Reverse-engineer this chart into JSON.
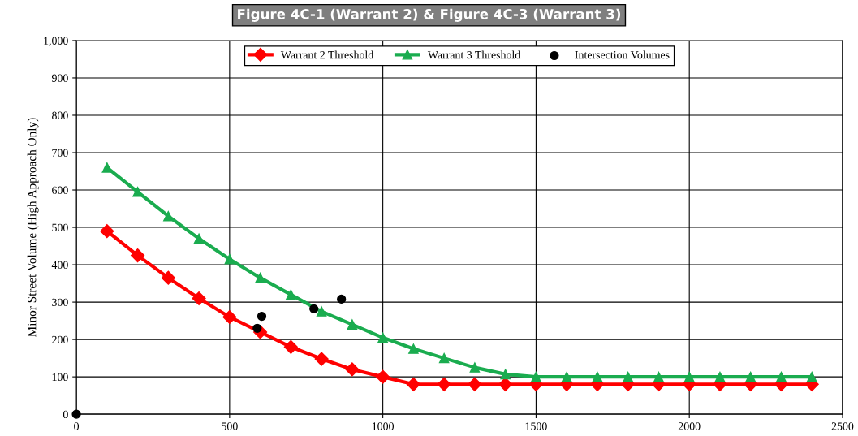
{
  "chart_data": {
    "type": "line",
    "title": "Figure 4C-1 (Warrant 2) & Figure 4C-3 (Warrant 3)",
    "ylabel": "Minor Street Volume (High Approach Only)",
    "xlim": [
      0,
      2500
    ],
    "xticks": [
      0,
      500,
      1000,
      1500,
      2000,
      2500
    ],
    "ylim": [
      0,
      1000
    ],
    "yticks": [
      0,
      100,
      200,
      300,
      400,
      500,
      600,
      700,
      800,
      900,
      {
        "value": 1000,
        "label": "1,000"
      }
    ],
    "grid": true,
    "legend": "top",
    "series": [
      {
        "name": "Warrant 2 Threshold",
        "color": "#ff0000",
        "marker": "diamond",
        "x": [
          100,
          200,
          300,
          400,
          500,
          600,
          700,
          800,
          900,
          1000,
          1100,
          1200,
          1300,
          1400,
          1500,
          1600,
          1700,
          1800,
          1900,
          2000,
          2100,
          2200,
          2300,
          2400
        ],
        "values": [
          490,
          425,
          365,
          310,
          260,
          220,
          180,
          148,
          120,
          100,
          80,
          80,
          80,
          80,
          80,
          80,
          80,
          80,
          80,
          80,
          80,
          80,
          80,
          80
        ]
      },
      {
        "name": "Warrant 3 Threshold",
        "color": "#1aac4f",
        "marker": "triangle",
        "x": [
          100,
          200,
          300,
          400,
          500,
          600,
          700,
          800,
          900,
          1000,
          1100,
          1200,
          1300,
          1400,
          1500,
          1600,
          1700,
          1800,
          1900,
          2000,
          2100,
          2200,
          2300,
          2400
        ],
        "values": [
          660,
          595,
          530,
          470,
          415,
          365,
          320,
          275,
          240,
          205,
          175,
          150,
          125,
          107,
          100,
          100,
          100,
          100,
          100,
          100,
          100,
          100,
          100,
          100
        ]
      },
      {
        "name": "Intersection Volumes",
        "type": "scatter",
        "color": "#000000",
        "marker": "circle",
        "x": [
          0,
          590,
          605,
          775,
          865
        ],
        "values": [
          0,
          230,
          262,
          282,
          308
        ]
      }
    ]
  }
}
